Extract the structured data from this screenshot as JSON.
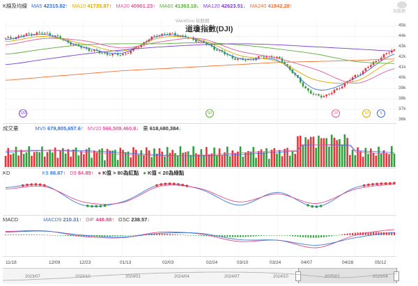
{
  "price_pane": {
    "title": "K線及均線",
    "ma": [
      {
        "label": "MA5",
        "value": "42315.82",
        "arrow": "↑",
        "color": "#3a6fd8"
      },
      {
        "label": "MA10",
        "value": "41735.87",
        "arrow": "↑",
        "color": "#e0a800"
      },
      {
        "label": "MA20",
        "value": "40901.23",
        "arrow": "↑",
        "color": "#e05a9a"
      },
      {
        "label": "MA60",
        "value": "41363.18",
        "arrow": "↓",
        "color": "#5cae3a"
      },
      {
        "label": "MA120",
        "value": "42623.51",
        "arrow": "↓",
        "color": "#7a3fd0"
      },
      {
        "label": "MA240",
        "value": "41842.28",
        "arrow": "↑",
        "color": "#f07030"
      }
    ],
    "watermark": "WantGoo 玩股網",
    "instrument": "道瓊指數(DJI)",
    "y_ticks": [
      "45k",
      "44k",
      "43k",
      "42k",
      "41k",
      "40k",
      "39k",
      "38k",
      "37k",
      "36k"
    ],
    "markers": [
      "120",
      "60",
      "20",
      "10",
      "5"
    ]
  },
  "volume_pane": {
    "title": "成交量",
    "mv5_label": "MV5",
    "mv5_value": "679,805,657.6",
    "mv5_arrow": "↑",
    "mv20_label": "MV20",
    "mv20_value": "566,509,460.8",
    "mv20_arrow": "↓",
    "vol_label": "量",
    "vol_value": "618,680,384",
    "vol_arrow": "↓"
  },
  "kd_pane": {
    "title": "KD",
    "k_label": "K9",
    "k_value": "88.87",
    "k_arrow": "↑",
    "d_label": "D9",
    "d_value": "84.85",
    "d_arrow": "↑",
    "note1": "K值 > 80為紅點",
    "note2": "K值 < 20為綠點"
  },
  "macd_pane": {
    "title": "MACD",
    "macd_label": "MACD9",
    "macd_value": "210.31",
    "macd_arrow": "↑",
    "dif_label": "DIF",
    "dif_value": "448.88",
    "dif_arrow": "↑",
    "osc_label": "OSC",
    "osc_value": "238.57",
    "osc_arrow": "↓"
  },
  "dates": [
    "11/18",
    "12/09",
    "12/23",
    "01/13",
    "02/03",
    "02/24",
    "03/10",
    "03/24",
    "04/07",
    "04/28",
    "05/12"
  ],
  "years": [
    "2023/07",
    "2023/10",
    "2024/01",
    "2024/04",
    "2024/07",
    "2024/10",
    "2025/01",
    "2025/04"
  ],
  "logo_text": "玩股網",
  "colors": {
    "up": "#e8333a",
    "down": "#2e9d3a",
    "k": "#3a78d8",
    "d": "#e0488a"
  },
  "chart_data": {
    "type": "line",
    "title": "道瓊指數(DJI)",
    "x": [
      "11/18",
      "12/09",
      "12/23",
      "01/13",
      "02/03",
      "02/24",
      "03/10",
      "03/24",
      "04/07",
      "04/28",
      "05/12"
    ],
    "close": [
      43800,
      44300,
      42900,
      42300,
      44200,
      43500,
      41800,
      41900,
      38300,
      40200,
      42700
    ],
    "ylim": [
      36000,
      45500
    ],
    "series": [
      {
        "name": "MA5",
        "values": [
          43700,
          44200,
          43000,
          42400,
          44100,
          43600,
          41900,
          41700,
          38900,
          40000,
          42300
        ]
      },
      {
        "name": "MA10",
        "values": [
          43500,
          44000,
          43300,
          42600,
          43900,
          43700,
          42200,
          41600,
          39800,
          39700,
          41700
        ]
      },
      {
        "name": "MA20",
        "values": [
          43200,
          43800,
          43600,
          42900,
          43500,
          43800,
          42600,
          41900,
          40800,
          39500,
          40900
        ]
      },
      {
        "name": "MA60",
        "values": [
          42300,
          42800,
          43200,
          43300,
          43300,
          43400,
          43200,
          42800,
          42300,
          41600,
          41400
        ]
      },
      {
        "name": "MA120",
        "values": [
          41300,
          41800,
          42300,
          42700,
          43000,
          43200,
          43300,
          43200,
          43000,
          42800,
          42600
        ]
      },
      {
        "name": "MA240",
        "values": [
          39800,
          40100,
          40400,
          40700,
          40900,
          41100,
          41300,
          41500,
          41600,
          41700,
          41840
        ]
      }
    ],
    "kd": {
      "k": [
        75,
        82,
        20,
        30,
        85,
        70,
        20,
        60,
        15,
        75,
        89
      ],
      "d": [
        70,
        78,
        30,
        28,
        80,
        72,
        30,
        55,
        25,
        70,
        85
      ]
    },
    "macd": {
      "dif": [
        300,
        350,
        -100,
        -200,
        250,
        100,
        -500,
        -400,
        -1000,
        0,
        449
      ],
      "macd": [
        250,
        320,
        0,
        -150,
        150,
        150,
        -350,
        -400,
        -800,
        -200,
        210
      ]
    }
  }
}
